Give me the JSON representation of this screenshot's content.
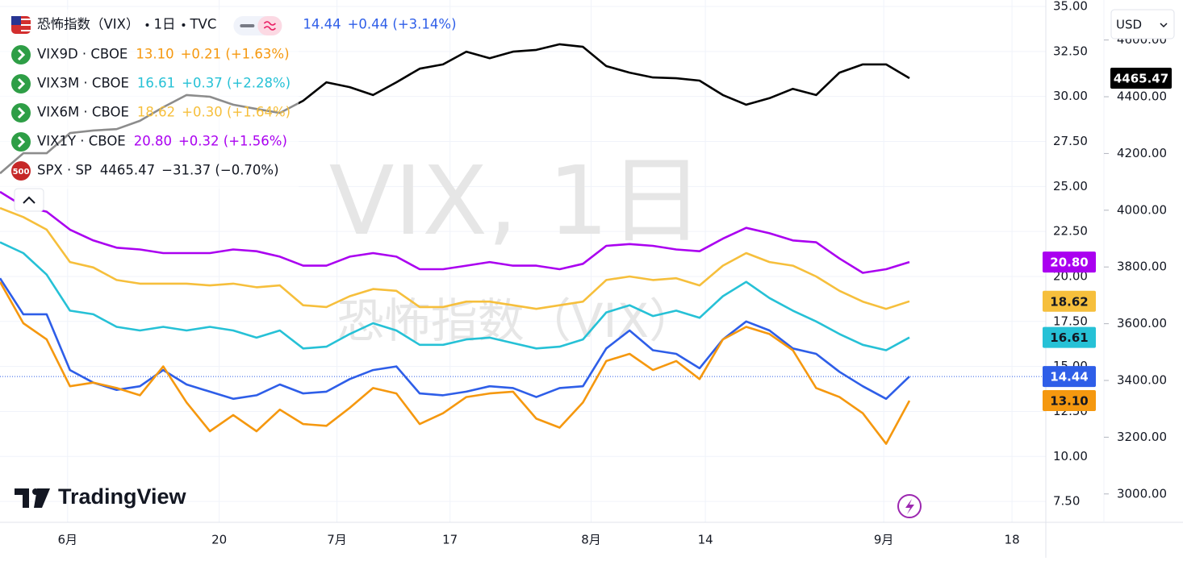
{
  "chart_data": {
    "type": "line",
    "interval": "1日",
    "source": "TVC",
    "watermark": "VIX, 1日",
    "branding": "TradingView",
    "currency": "USD",
    "x": [
      0,
      2,
      4,
      6,
      8,
      10,
      12,
      14,
      16,
      18,
      20,
      22,
      24,
      26,
      28,
      30,
      32,
      34,
      36,
      38,
      40,
      42,
      44,
      46,
      48,
      50,
      52,
      54,
      56,
      58,
      60,
      62,
      64,
      66,
      68,
      70,
      72,
      74,
      76,
      78
    ],
    "xlim": [
      0,
      89.7
    ],
    "xticks": [
      {
        "value": 5.8,
        "label": "6月"
      },
      {
        "value": 18.8,
        "label": "20"
      },
      {
        "value": 28.9,
        "label": "7月"
      },
      {
        "value": 38.6,
        "label": "17"
      },
      {
        "value": 50.7,
        "label": "8月"
      },
      {
        "value": 60.5,
        "label": "14"
      },
      {
        "value": 75.8,
        "label": "9月"
      },
      {
        "value": 86.8,
        "label": "18"
      }
    ],
    "ylim": [
      6.34,
      35.36
    ],
    "yticks": [
      {
        "value": 35,
        "label": "35.00"
      },
      {
        "value": 32.5,
        "label": "32.50"
      },
      {
        "value": 30,
        "label": "30.00"
      },
      {
        "value": 27.5,
        "label": "27.50"
      },
      {
        "value": 25,
        "label": "25.00"
      },
      {
        "value": 22.5,
        "label": "22.50"
      },
      {
        "value": 20,
        "label": "20.00"
      },
      {
        "value": 17.5,
        "label": "17.50"
      },
      {
        "value": 15,
        "label": "15.00"
      },
      {
        "value": 12.5,
        "label": "12.50"
      },
      {
        "value": 10,
        "label": "10.00"
      },
      {
        "value": 7.5,
        "label": "7.50"
      }
    ],
    "y2lim": [
      2900,
      4741
    ],
    "y2ticks": [
      {
        "value": 3000,
        "label": "3000.00"
      },
      {
        "value": 3200,
        "label": "3200.00"
      },
      {
        "value": 3400,
        "label": "3400.00"
      },
      {
        "value": 3600,
        "label": "3600.00"
      },
      {
        "value": 3800,
        "label": "3800.00"
      },
      {
        "value": 4000,
        "label": "4000.00"
      },
      {
        "value": 4200,
        "label": "4200.00"
      },
      {
        "value": 4400,
        "label": "4400.00"
      },
      {
        "value": 4600,
        "label": "4600.00"
      }
    ],
    "grid": true,
    "series": [
      {
        "name": "恐怖指数（VIX）",
        "color": "#2e5ee8",
        "label_color": "#ffffff",
        "last_label": "14.44",
        "change": "+0.44 (+3.14%)",
        "values": [
          19.9,
          17.9,
          17.9,
          14.8,
          14.1,
          13.7,
          13.9,
          14.8,
          14.0,
          13.6,
          13.2,
          13.4,
          14.0,
          13.5,
          13.6,
          14.3,
          14.8,
          15.0,
          13.5,
          13.4,
          13.6,
          13.9,
          13.8,
          13.3,
          13.8,
          13.9,
          16.0,
          17.0,
          15.9,
          15.7,
          14.9,
          16.5,
          17.5,
          17.0,
          16.0,
          15.7,
          14.7,
          13.9,
          13.2,
          14.44
        ]
      },
      {
        "name": "VIX9D · CBOE",
        "color": "#f5980f",
        "label_color": "#131722",
        "last_label": "13.10",
        "change": "+0.21 (+1.63%)",
        "values": [
          19.7,
          17.4,
          16.5,
          13.9,
          14.1,
          13.8,
          13.4,
          15.0,
          13.0,
          11.4,
          12.3,
          11.4,
          12.6,
          11.8,
          11.7,
          12.7,
          13.8,
          13.5,
          11.8,
          12.4,
          13.3,
          13.5,
          13.6,
          12.1,
          11.6,
          13.0,
          15.3,
          15.7,
          14.8,
          15.3,
          14.3,
          16.5,
          17.2,
          16.8,
          15.9,
          13.8,
          13.3,
          12.4,
          10.7,
          13.1
        ]
      },
      {
        "name": "VIX3M · CBOE",
        "color": "#26c1d6",
        "label_color": "#131722",
        "last_label": "16.61",
        "change": "+0.37 (+2.28%)",
        "values": [
          21.9,
          21.3,
          20.1,
          18.1,
          17.9,
          17.2,
          17.0,
          17.2,
          17.0,
          17.2,
          17.0,
          16.6,
          17.0,
          16.0,
          16.1,
          16.8,
          17.4,
          17.0,
          16.2,
          16.2,
          16.5,
          16.6,
          16.3,
          16.0,
          16.1,
          16.5,
          18.0,
          18.4,
          17.8,
          18.1,
          17.7,
          18.9,
          19.7,
          18.8,
          18.1,
          17.5,
          16.8,
          16.2,
          15.9,
          16.61
        ]
      },
      {
        "name": "VIX6M · CBOE",
        "color": "#f6bf3c",
        "label_color": "#131722",
        "last_label": "18.62",
        "change": "+0.30 (+1.64%)",
        "values": [
          23.8,
          23.3,
          22.6,
          20.8,
          20.5,
          19.8,
          19.6,
          19.6,
          19.6,
          19.5,
          19.6,
          19.4,
          19.5,
          18.4,
          18.3,
          18.9,
          19.3,
          19.2,
          18.3,
          18.3,
          18.6,
          18.6,
          18.4,
          18.2,
          18.4,
          18.6,
          19.8,
          20.0,
          19.8,
          19.9,
          19.5,
          20.6,
          21.3,
          20.8,
          20.6,
          20.0,
          19.2,
          18.6,
          18.2,
          18.62
        ]
      },
      {
        "name": "VIX1Y · CBOE",
        "color": "#aa00f0",
        "label_color": "#ffffff",
        "last_label": "20.80",
        "change": "+0.32 (+1.56%)",
        "values": [
          24.7,
          23.9,
          23.6,
          22.6,
          22.0,
          21.6,
          21.5,
          21.3,
          21.3,
          21.3,
          21.5,
          21.4,
          21.1,
          20.6,
          20.6,
          21.1,
          21.3,
          21.1,
          20.4,
          20.4,
          20.6,
          20.8,
          20.6,
          20.6,
          20.4,
          20.7,
          21.7,
          21.8,
          21.7,
          21.5,
          21.4,
          22.1,
          22.7,
          22.4,
          22.0,
          21.9,
          21.0,
          20.2,
          20.4,
          20.8
        ]
      },
      {
        "name": "SPX · SP",
        "axis": "y2",
        "color": "#000000",
        "label_color": "#ffffff",
        "last_label": "4465.47",
        "change": "−31.37 (−0.70%)",
        "icon_label": "500",
        "values": [
          4130,
          4201,
          4201,
          4272,
          4281,
          4286,
          4315,
          4363,
          4406,
          4400,
          4372,
          4357,
          4343,
          4386,
          4451,
          4434,
          4406,
          4451,
          4499,
          4514,
          4559,
          4536,
          4559,
          4565,
          4585,
          4576,
          4508,
          4485,
          4468,
          4465,
          4457,
          4406,
          4372,
          4395,
          4428,
          4406,
          4485,
          4514,
          4514,
          4465.47
        ]
      }
    ]
  }
}
